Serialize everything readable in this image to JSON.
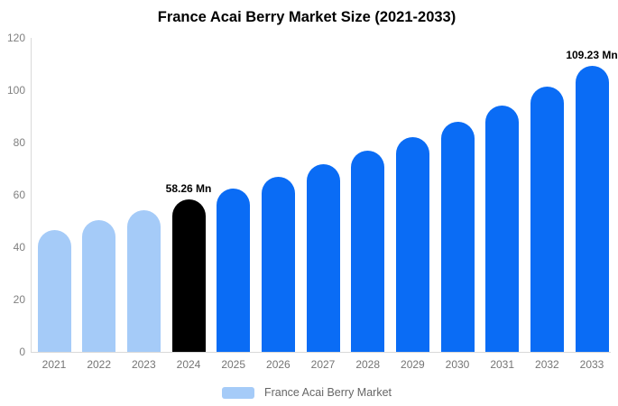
{
  "title": "France Acai Berry Market Size (2021-2033)",
  "legend": {
    "label": "France Acai Berry Market",
    "swatch_color": "#a5cbf8"
  },
  "palette": {
    "historical": "#a5cbf8",
    "base_year": "#000000",
    "forecast": "#0a6cf5",
    "axis_line": "#d9d9d9",
    "tick_text": "#808080",
    "background": "#ffffff"
  },
  "chart_data": {
    "type": "bar",
    "title": "France Acai Berry Market Size (2021-2033)",
    "xlabel": "",
    "ylabel": "",
    "ylim": [
      0,
      120
    ],
    "yticks": [
      0,
      20,
      40,
      60,
      80,
      100,
      120
    ],
    "grid": false,
    "legend_position": "bottom",
    "categories": [
      "2021",
      "2022",
      "2023",
      "2024",
      "2025",
      "2026",
      "2027",
      "2028",
      "2029",
      "2030",
      "2031",
      "2032",
      "2033"
    ],
    "series": [
      {
        "name": "France Acai Berry Market",
        "values": [
          46.5,
          50.3,
          54.1,
          58.26,
          62.3,
          66.8,
          71.7,
          76.8,
          82.1,
          87.8,
          94.1,
          101.5,
          109.23
        ],
        "bar_colors": [
          "#a5cbf8",
          "#a5cbf8",
          "#a5cbf8",
          "#000000",
          "#0a6cf5",
          "#0a6cf5",
          "#0a6cf5",
          "#0a6cf5",
          "#0a6cf5",
          "#0a6cf5",
          "#0a6cf5",
          "#0a6cf5",
          "#0a6cf5"
        ]
      }
    ],
    "annotations": [
      {
        "category": "2024",
        "text": "58.26 Mn"
      },
      {
        "category": "2033",
        "text": "109.23 Mn"
      }
    ]
  }
}
